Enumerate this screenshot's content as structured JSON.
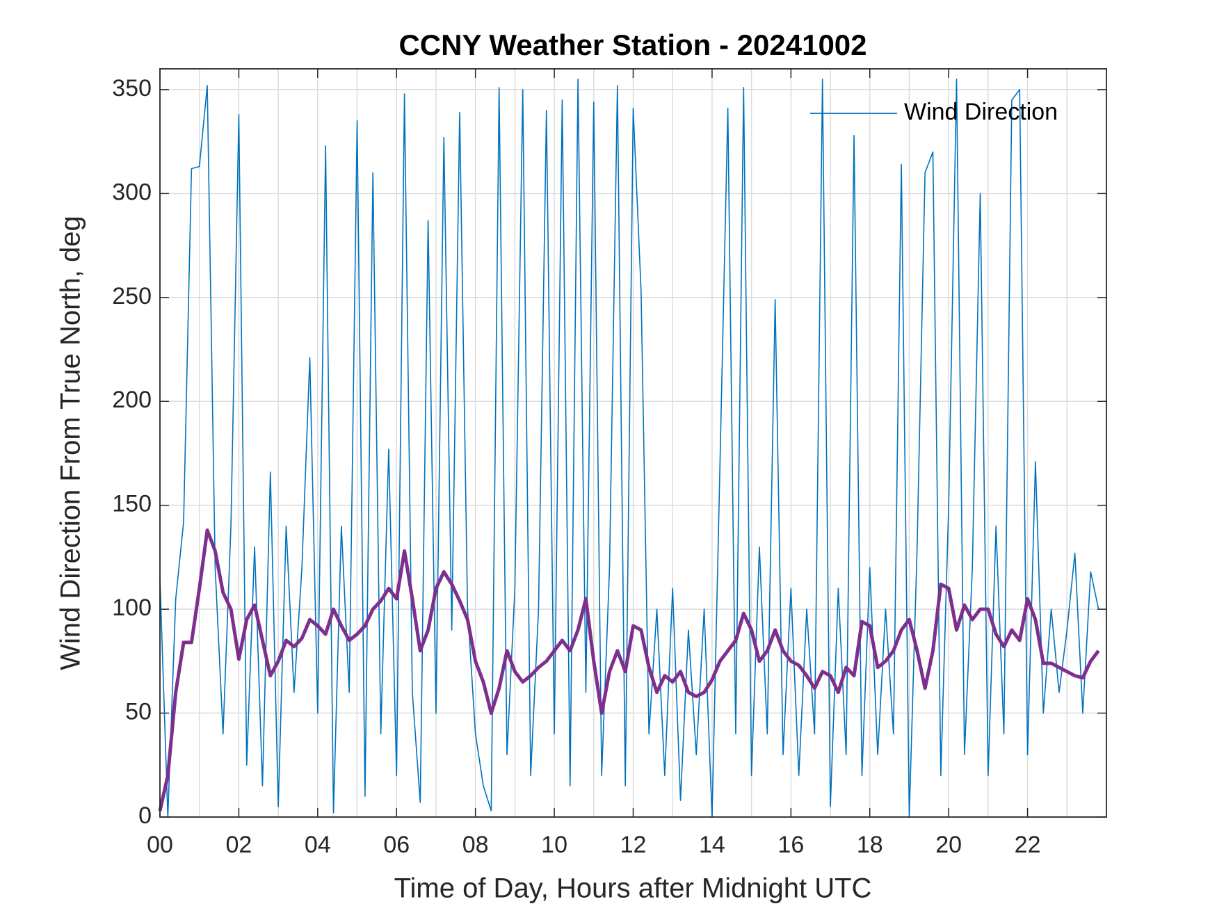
{
  "chart_data": {
    "type": "line",
    "title": "CCNY Weather Station - 20241002",
    "xlabel": "Time of Day, Hours after Midnight UTC",
    "ylabel": "Wind Direction From True North, deg",
    "xlim": [
      0,
      24
    ],
    "ylim": [
      0,
      360
    ],
    "xticks": [
      {
        "value": 0,
        "label": "00"
      },
      {
        "value": 2,
        "label": "02"
      },
      {
        "value": 4,
        "label": "04"
      },
      {
        "value": 6,
        "label": "06"
      },
      {
        "value": 8,
        "label": "08"
      },
      {
        "value": 10,
        "label": "10"
      },
      {
        "value": 12,
        "label": "12"
      },
      {
        "value": 14,
        "label": "14"
      },
      {
        "value": 16,
        "label": "16"
      },
      {
        "value": 18,
        "label": "18"
      },
      {
        "value": 20,
        "label": "20"
      },
      {
        "value": 22,
        "label": "22"
      }
    ],
    "xgrid_minor": [
      1,
      3,
      5,
      7,
      9,
      11,
      13,
      15,
      17,
      19,
      21,
      23
    ],
    "yticks": [
      0,
      50,
      100,
      150,
      200,
      250,
      300,
      350
    ],
    "grid": true,
    "legend": "upper right",
    "x": [
      0,
      0.2,
      0.4,
      0.6,
      0.8,
      1,
      1.2,
      1.4,
      1.6,
      1.8,
      2,
      2.2,
      2.4,
      2.6,
      2.8,
      3,
      3.2,
      3.4,
      3.6,
      3.8,
      4,
      4.2,
      4.4,
      4.6,
      4.8,
      5,
      5.2,
      5.4,
      5.6,
      5.8,
      6,
      6.2,
      6.4,
      6.6,
      6.8,
      7,
      7.2,
      7.4,
      7.6,
      7.8,
      8,
      8.2,
      8.4,
      8.6,
      8.8,
      9,
      9.2,
      9.4,
      9.6,
      9.8,
      10,
      10.2,
      10.4,
      10.6,
      10.8,
      11,
      11.2,
      11.4,
      11.6,
      11.8,
      12,
      12.2,
      12.4,
      12.6,
      12.8,
      13,
      13.2,
      13.4,
      13.6,
      13.8,
      14,
      14.2,
      14.4,
      14.6,
      14.8,
      15,
      15.2,
      15.4,
      15.6,
      15.8,
      16,
      16.2,
      16.4,
      16.6,
      16.8,
      17,
      17.2,
      17.4,
      17.6,
      17.8,
      18,
      18.2,
      18.4,
      18.6,
      18.8,
      19,
      19.2,
      19.4,
      19.6,
      19.8,
      20,
      20.2,
      20.4,
      20.6,
      20.8,
      21,
      21.2,
      21.4,
      21.6,
      21.8,
      22,
      22.2,
      22.4,
      22.6,
      22.8,
      23,
      23.2,
      23.4,
      23.6,
      23.8
    ],
    "series": [
      {
        "name": "Wind Direction",
        "color": "#0072bd",
        "width": 1.6,
        "values": [
          115,
          0,
          105,
          142,
          312,
          313,
          352,
          120,
          40,
          140,
          338,
          25,
          130,
          15,
          166,
          5,
          140,
          60,
          120,
          221,
          50,
          323,
          2,
          140,
          60,
          335,
          10,
          310,
          40,
          177,
          20,
          348,
          60,
          7,
          287,
          50,
          327,
          90,
          339,
          100,
          40,
          15,
          3,
          351,
          30,
          110,
          350,
          20,
          100,
          340,
          40,
          345,
          15,
          355,
          60,
          344,
          20,
          120,
          352,
          15,
          341,
          253,
          40,
          100,
          20,
          110,
          8,
          90,
          30,
          100,
          0,
          169,
          341,
          40,
          351,
          20,
          130,
          40,
          249,
          30,
          110,
          20,
          100,
          40,
          355,
          5,
          110,
          30,
          328,
          20,
          120,
          30,
          100,
          40,
          314,
          0,
          130,
          310,
          320,
          20,
          150,
          355,
          30,
          120,
          300,
          20,
          140,
          40,
          345,
          350,
          30,
          171,
          50,
          100,
          60,
          90,
          127,
          50,
          118,
          100
        ]
      },
      {
        "color": "#7e2f8e",
        "width": 5,
        "values": [
          3,
          20,
          60,
          84,
          84,
          110,
          138,
          128,
          108,
          100,
          76,
          95,
          102,
          85,
          68,
          75,
          85,
          82,
          86,
          95,
          92,
          88,
          100,
          92,
          85,
          88,
          92,
          100,
          104,
          110,
          105,
          128,
          105,
          80,
          90,
          110,
          118,
          112,
          104,
          95,
          75,
          65,
          50,
          62,
          80,
          70,
          65,
          68,
          72,
          75,
          80,
          85,
          80,
          90,
          105,
          75,
          50,
          70,
          80,
          70,
          92,
          90,
          72,
          60,
          68,
          65,
          70,
          60,
          58,
          60,
          66,
          75,
          80,
          85,
          98,
          90,
          75,
          80,
          90,
          80,
          75,
          73,
          68,
          62,
          70,
          68,
          60,
          72,
          68,
          94,
          92,
          72,
          75,
          80,
          90,
          95,
          80,
          62,
          80,
          112,
          110,
          90,
          102,
          95,
          100,
          100,
          88,
          82,
          90,
          85,
          105,
          95,
          74,
          74,
          72,
          70,
          68,
          67,
          75,
          80
        ]
      }
    ]
  }
}
